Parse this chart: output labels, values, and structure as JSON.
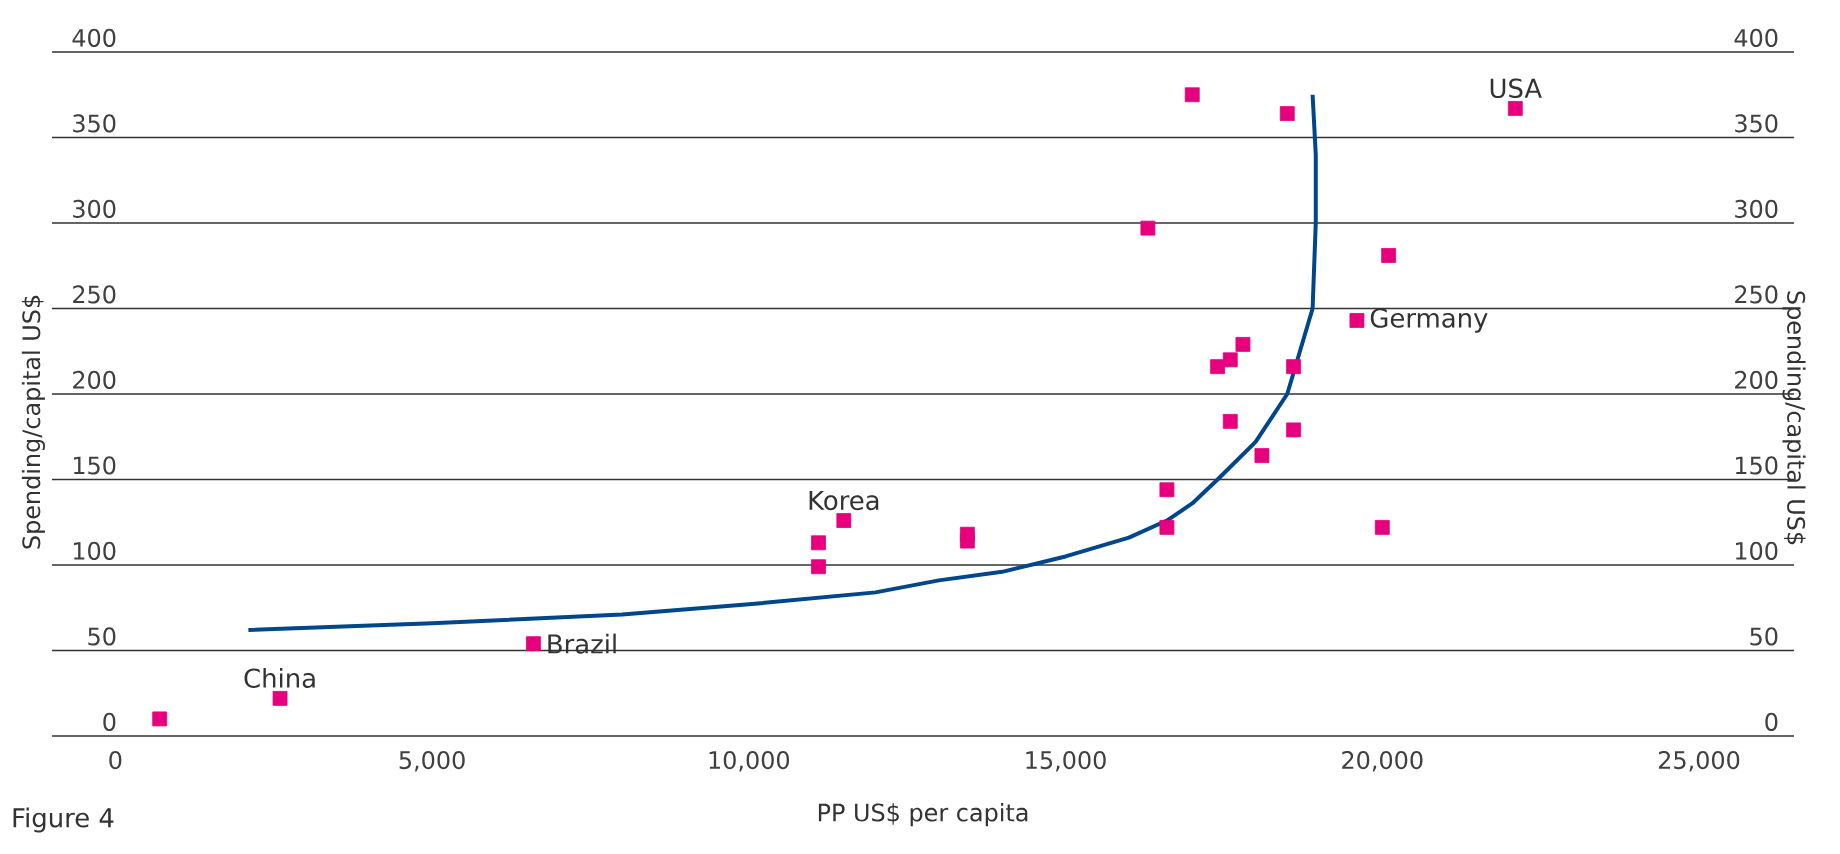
{
  "chart_data": {
    "type": "scatter",
    "xlabel": "PP US$ per capita",
    "ylabel": "Spending/capital US$",
    "y2label": "Spending/capital US$",
    "xlim": [
      -1000,
      26500
    ],
    "xticks": [
      {
        "value": 0,
        "label": "0"
      },
      {
        "value": 5000,
        "label": "5,000"
      },
      {
        "value": 10000,
        "label": "10,000"
      },
      {
        "value": 15000,
        "label": "15,000"
      },
      {
        "value": 20000,
        "label": "20,000"
      },
      {
        "value": 25000,
        "label": "25,000"
      }
    ],
    "ylim": [
      0,
      400
    ],
    "yticks": [
      0,
      50,
      100,
      150,
      200,
      250,
      300,
      350,
      400
    ],
    "y2lim": [
      0,
      400
    ],
    "y2ticks": [
      0,
      50,
      100,
      150,
      200,
      250,
      300,
      350,
      400
    ],
    "grid": "y",
    "series": [
      {
        "color": "#e6007e",
        "marker": "square",
        "x": [
          700,
          2600,
          6600,
          11100,
          11100,
          11500,
          13450,
          13450,
          16300,
          17000,
          18500,
          22100,
          20100,
          19600,
          17800,
          17600,
          17400,
          18600,
          17600,
          18600,
          18100,
          16600,
          16600,
          20000
        ],
        "values": [
          10,
          22,
          54,
          113,
          99,
          126,
          118,
          114,
          297,
          375,
          364,
          367,
          281,
          243,
          229,
          220,
          216,
          216,
          184,
          179,
          164,
          144,
          122,
          122
        ]
      },
      {
        "type": "line",
        "color": "#00468b",
        "marker": "none",
        "line_style": "solid",
        "x": [
          2100,
          5000,
          8000,
          10000,
          12000,
          13000,
          14000,
          15000,
          16000,
          16600,
          17000,
          17400,
          18000,
          18500,
          18900,
          18950,
          18950,
          18900
        ],
        "values": [
          62,
          66,
          71,
          77,
          84,
          91,
          96,
          105,
          116,
          126,
          136,
          150,
          172,
          200,
          250,
          300,
          340,
          375
        ]
      }
    ],
    "annotations": [
      {
        "text": "China",
        "x": 2600,
        "y": 22
      },
      {
        "text": "Brazil",
        "x": 6600,
        "y": 54
      },
      {
        "text": "Korea",
        "x": 11500,
        "y": 126
      },
      {
        "text": "USA",
        "x": 22100,
        "y": 367
      },
      {
        "text": "Germany",
        "x": 19600,
        "y": 243
      },
      "Figure 4"
    ]
  }
}
